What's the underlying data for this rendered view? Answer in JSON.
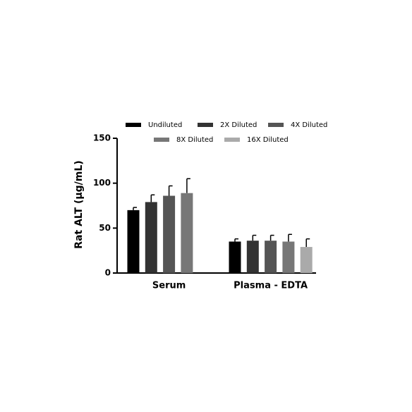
{
  "chart_data": {
    "type": "bar",
    "y_label": "Rat ALT (µg/mL)",
    "categories": [
      "Serum",
      "Plasma - EDTA"
    ],
    "series": [
      {
        "name": "Undiluted",
        "color": "#000000",
        "values": [
          70,
          35
        ],
        "errors": [
          3,
          3
        ]
      },
      {
        "name": "2X Diluted",
        "color": "#333333",
        "values": [
          79,
          36
        ],
        "errors": [
          8,
          6
        ]
      },
      {
        "name": "4X Diluted",
        "color": "#555555",
        "values": [
          86,
          36
        ],
        "errors": [
          11,
          6
        ]
      },
      {
        "name": "8X Diluted",
        "color": "#777777",
        "values": [
          89,
          35
        ],
        "errors": [
          16,
          8
        ]
      },
      {
        "name": "16X Diluted",
        "color": "#aaaaaa",
        "values": [
          null,
          29
        ],
        "errors": [
          null,
          9
        ]
      }
    ],
    "ylim": [
      0,
      150
    ],
    "yticks": [
      0,
      50,
      100,
      150
    ]
  }
}
